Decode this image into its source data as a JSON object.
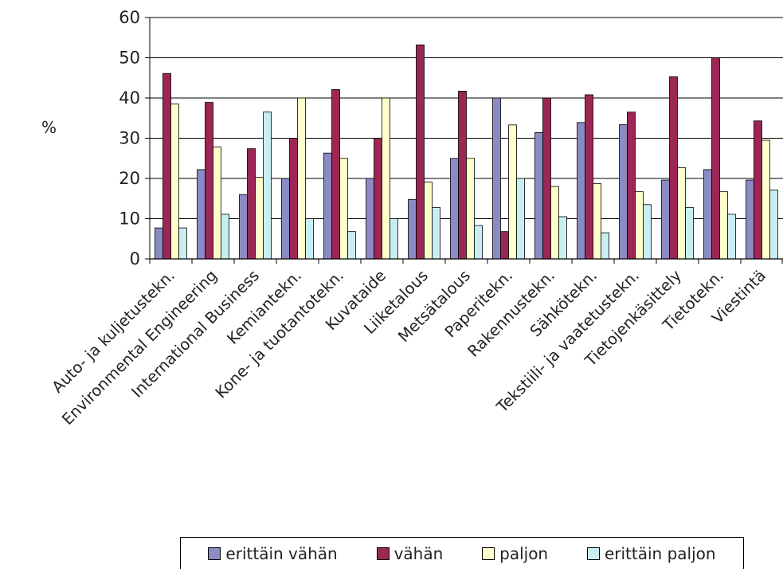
{
  "chart_data": {
    "type": "bar",
    "ylabel": "%",
    "ylim": [
      0,
      60
    ],
    "yticks": [
      0,
      10,
      20,
      30,
      40,
      50,
      60
    ],
    "grid": true,
    "legend_position": "bottom",
    "categories": [
      "Auto- ja kuljetustekn.",
      "Environmental Engineering",
      "International Business",
      "Kemiantekn.",
      "Kone- ja tuotantotekn.",
      "Kuvataide",
      "Liiketalous",
      "Metsätalous",
      "Paperitekn.",
      "Rakennustekn.",
      "Sähkötekn.",
      "Tekstiili- ja vaatetustekn.",
      "Tietojenkäsittely",
      "Tietotekn.",
      "Viestintä"
    ],
    "series": [
      {
        "name": "erittäin vähän",
        "color": "#8b8bc4",
        "values": [
          7.7,
          22.2,
          16.0,
          20.0,
          26.3,
          20.0,
          14.8,
          25.0,
          40.0,
          31.4,
          33.9,
          33.4,
          19.6,
          22.2,
          19.6
        ]
      },
      {
        "name": "vähän",
        "color": "#9c2654",
        "values": [
          46.1,
          38.9,
          27.4,
          30.0,
          42.1,
          30.0,
          53.2,
          41.7,
          6.8,
          40.0,
          40.8,
          36.5,
          45.3,
          50.0,
          34.3
        ]
      },
      {
        "name": "paljon",
        "color": "#ffffcc",
        "values": [
          38.5,
          27.8,
          20.3,
          40.0,
          25.0,
          40.0,
          19.1,
          25.0,
          33.3,
          18.0,
          18.7,
          16.7,
          22.7,
          16.7,
          29.5
        ]
      },
      {
        "name": "erittäin paljon",
        "color": "#c9eef2",
        "values": [
          7.7,
          11.1,
          36.5,
          10.0,
          6.8,
          10.0,
          12.8,
          8.3,
          20.0,
          10.5,
          6.5,
          13.5,
          12.8,
          11.1,
          17.1
        ]
      }
    ]
  }
}
